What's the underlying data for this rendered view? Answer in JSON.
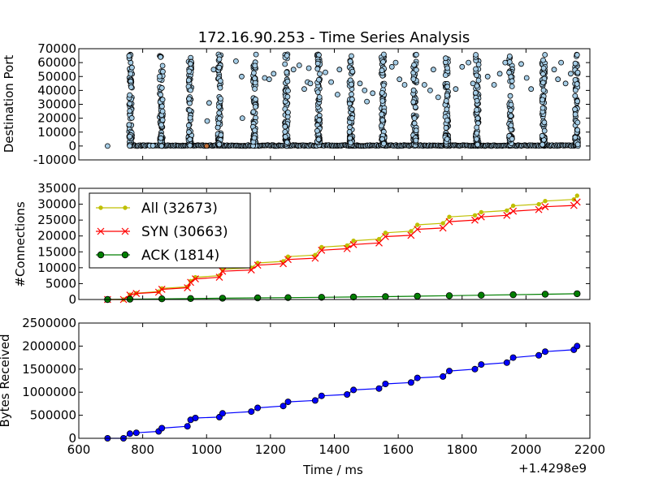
{
  "chart_data": [
    {
      "type": "scatter",
      "title": "172.16.90.253 - Time Series Analysis",
      "ylabel": "Destination Port",
      "xlim": [
        600,
        2200
      ],
      "ylim": [
        -10000,
        70000
      ],
      "yticks": [
        "70000",
        "60000",
        "50000",
        "40000",
        "30000",
        "20000",
        "10000",
        "0",
        "-10000"
      ],
      "marker_color": "#a6cde6",
      "edge_color": "#000000",
      "highlight_color": "#c0703a",
      "bursts_x": [
        762,
        858,
        948,
        1040,
        1150,
        1250,
        1350,
        1452,
        1552,
        1652,
        1752,
        1847,
        1952,
        2055,
        2158
      ],
      "sparse_points": [
        {
          "x": 690,
          "y": 0
        },
        {
          "x": 822,
          "y": 200
        },
        {
          "x": 832,
          "y": 200
        },
        {
          "x": 1002,
          "y": 18000
        },
        {
          "x": 1008,
          "y": 31000
        },
        {
          "x": 1022,
          "y": 55000
        },
        {
          "x": 1092,
          "y": 61000
        },
        {
          "x": 1110,
          "y": 50000
        },
        {
          "x": 1112,
          "y": 20000
        },
        {
          "x": 1182,
          "y": 49000
        },
        {
          "x": 1196,
          "y": 48000
        },
        {
          "x": 1210,
          "y": 52000
        },
        {
          "x": 1272,
          "y": 55000
        },
        {
          "x": 1290,
          "y": 58000
        },
        {
          "x": 1306,
          "y": 41000
        },
        {
          "x": 1316,
          "y": 46000
        },
        {
          "x": 1320,
          "y": 56000
        },
        {
          "x": 1325,
          "y": 45000
        },
        {
          "x": 1372,
          "y": 53000
        },
        {
          "x": 1390,
          "y": 46000
        },
        {
          "x": 1410,
          "y": 37000
        },
        {
          "x": 1416,
          "y": 55000
        },
        {
          "x": 1480,
          "y": 45000
        },
        {
          "x": 1495,
          "y": 40000
        },
        {
          "x": 1502,
          "y": 32000
        },
        {
          "x": 1520,
          "y": 38000
        },
        {
          "x": 1580,
          "y": 57000
        },
        {
          "x": 1592,
          "y": 60000
        },
        {
          "x": 1604,
          "y": 48000
        },
        {
          "x": 1620,
          "y": 44000
        },
        {
          "x": 1682,
          "y": 44000
        },
        {
          "x": 1700,
          "y": 40000
        },
        {
          "x": 1710,
          "y": 55000
        },
        {
          "x": 1725,
          "y": 35000
        },
        {
          "x": 1780,
          "y": 41000
        },
        {
          "x": 1800,
          "y": 57000
        },
        {
          "x": 1820,
          "y": 60000
        },
        {
          "x": 1834,
          "y": 45000
        },
        {
          "x": 1880,
          "y": 50000
        },
        {
          "x": 1900,
          "y": 44000
        },
        {
          "x": 1918,
          "y": 52000
        },
        {
          "x": 1935,
          "y": 60000
        },
        {
          "x": 1985,
          "y": 59000
        },
        {
          "x": 2002,
          "y": 49000
        },
        {
          "x": 2016,
          "y": 41000
        },
        {
          "x": 2088,
          "y": 55000
        },
        {
          "x": 2100,
          "y": 48000
        },
        {
          "x": 2110,
          "y": 60000
        },
        {
          "x": 2124,
          "y": 45000
        },
        {
          "x": 2140,
          "y": 52000
        }
      ],
      "highlight_points": [
        {
          "x": 1000,
          "y": 0
        }
      ]
    },
    {
      "type": "line",
      "ylabel": "#Connections",
      "xlim": [
        600,
        2200
      ],
      "ylim": [
        0,
        35000
      ],
      "yticks": [
        "35000",
        "30000",
        "25000",
        "20000",
        "15000",
        "10000",
        "5000",
        "0"
      ],
      "legend_position": "upper-left",
      "series": [
        {
          "name": "All (32673)",
          "color": "#bfbf00",
          "marker": "dot",
          "x": [
            690,
            740,
            760,
            780,
            850,
            860,
            940,
            950,
            965,
            1040,
            1050,
            1140,
            1160,
            1240,
            1255,
            1340,
            1360,
            1440,
            1460,
            1540,
            1560,
            1640,
            1660,
            1740,
            1760,
            1840,
            1860,
            1940,
            1960,
            2040,
            2060,
            2150,
            2160
          ],
          "y": [
            0,
            0,
            1500,
            2000,
            2500,
            3500,
            4000,
            5800,
            7000,
            7500,
            9500,
            10000,
            11500,
            12000,
            13500,
            14000,
            16500,
            17000,
            18500,
            19000,
            21000,
            21500,
            23500,
            24000,
            26000,
            26500,
            27500,
            28000,
            29500,
            30000,
            31000,
            31500,
            32673
          ]
        },
        {
          "name": "SYN (30663)",
          "color": "#ff0000",
          "marker": "x",
          "x": [
            690,
            740,
            760,
            780,
            850,
            860,
            940,
            950,
            965,
            1040,
            1050,
            1140,
            1160,
            1240,
            1255,
            1340,
            1360,
            1440,
            1460,
            1540,
            1560,
            1640,
            1660,
            1740,
            1760,
            1840,
            1860,
            1940,
            1960,
            2040,
            2060,
            2150,
            2160
          ],
          "y": [
            0,
            0,
            1400,
            1900,
            2300,
            3200,
            3700,
            5400,
            6500,
            7000,
            8900,
            9300,
            10800,
            11300,
            12600,
            13000,
            15500,
            16000,
            17300,
            17800,
            19800,
            20200,
            22100,
            22500,
            24500,
            25000,
            26000,
            26500,
            27800,
            28300,
            29200,
            29600,
            30663
          ]
        },
        {
          "name": "ACK (1814)",
          "color": "#007f00",
          "marker": "circle",
          "x": [
            690,
            760,
            860,
            950,
            1050,
            1160,
            1255,
            1360,
            1460,
            1560,
            1660,
            1760,
            1860,
            1960,
            2060,
            2160
          ],
          "y": [
            0,
            100,
            200,
            300,
            400,
            500,
            600,
            700,
            800,
            900,
            1050,
            1200,
            1350,
            1500,
            1650,
            1814
          ]
        }
      ]
    },
    {
      "type": "line",
      "ylabel": "Bytes Received",
      "xlabel": "Time / ms",
      "offset_label": "+1.4298e9",
      "xlim": [
        600,
        2200
      ],
      "ylim": [
        0,
        2500000
      ],
      "xticks": [
        "600",
        "800",
        "1000",
        "1200",
        "1400",
        "1600",
        "1800",
        "2000",
        "2200"
      ],
      "yticks": [
        "2500000",
        "2000000",
        "1500000",
        "1000000",
        "500000",
        "0"
      ],
      "series": [
        {
          "name": "",
          "color": "#0000ff",
          "x": [
            690,
            740,
            760,
            780,
            850,
            860,
            940,
            950,
            965,
            1040,
            1050,
            1140,
            1160,
            1240,
            1255,
            1340,
            1360,
            1440,
            1460,
            1540,
            1560,
            1640,
            1660,
            1740,
            1760,
            1840,
            1860,
            1940,
            1960,
            2040,
            2060,
            2150,
            2160
          ],
          "y": [
            0,
            0,
            100000,
            120000,
            150000,
            220000,
            260000,
            400000,
            440000,
            460000,
            540000,
            580000,
            660000,
            700000,
            790000,
            820000,
            920000,
            950000,
            1050000,
            1080000,
            1180000,
            1210000,
            1310000,
            1340000,
            1460000,
            1500000,
            1600000,
            1640000,
            1750000,
            1800000,
            1880000,
            1920000,
            2000000
          ]
        }
      ]
    }
  ]
}
